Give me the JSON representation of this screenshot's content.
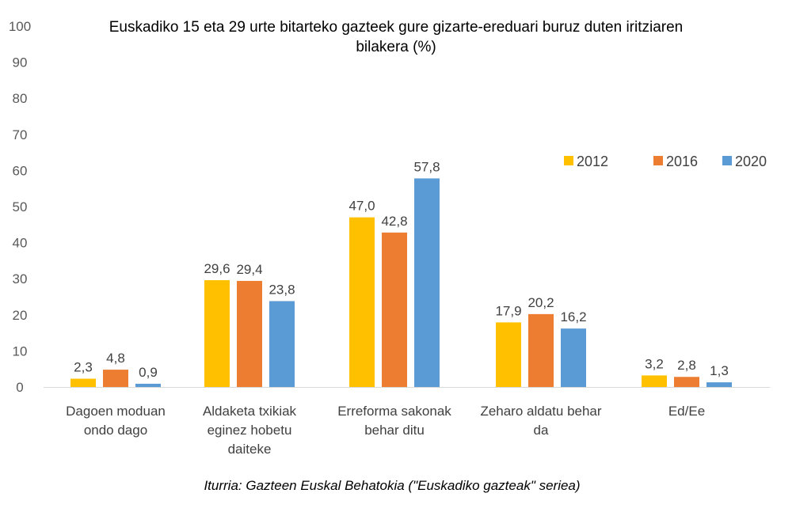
{
  "chart_data": {
    "type": "bar",
    "title": "Euskadiko 15 eta 29 urte bitarteko gazteek gure gizarte-ereduari buruz duten iritziaren bilakera  (%)",
    "categories": [
      [
        "Dagoen moduan",
        "ondo dago"
      ],
      [
        "Aldaketa txikiak",
        "eginez hobetu",
        "daiteke"
      ],
      [
        "Erreforma sakonak",
        "behar ditu"
      ],
      [
        "Zeharo aldatu behar",
        "da"
      ],
      [
        "Ed/Ee"
      ]
    ],
    "series": [
      {
        "name": "2012",
        "color": "#FFC000",
        "values": [
          2.3,
          29.6,
          47.0,
          17.9,
          3.2
        ]
      },
      {
        "name": "2016",
        "color": "#ED7D31",
        "values": [
          4.8,
          29.4,
          42.8,
          20.2,
          2.8
        ]
      },
      {
        "name": "2020",
        "color": "#5B9BD5",
        "values": [
          0.9,
          23.8,
          57.8,
          16.2,
          1.3
        ]
      }
    ],
    "ylim": [
      0,
      100
    ],
    "yticks": [
      "0",
      "10",
      "20",
      "30",
      "40",
      "50",
      "60",
      "70",
      "80",
      "90",
      "100"
    ],
    "grid": false,
    "legend": "top-right",
    "decimal_separator": ",",
    "source": "Iturria: Gazteen Euskal Behatokia (\"Euskadiko gazteak\" seriea)"
  }
}
